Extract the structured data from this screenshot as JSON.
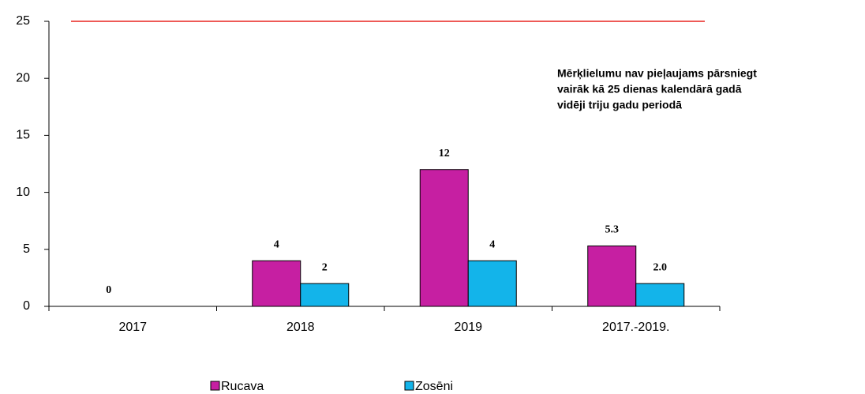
{
  "chart_data": {
    "type": "bar",
    "categories": [
      "2017",
      "2018",
      "2019",
      "2017.-2019."
    ],
    "series": [
      {
        "name": "Rucava",
        "color": "#c61fa2",
        "values": [
          0,
          4,
          12,
          5.3
        ]
      },
      {
        "name": "Zosēni",
        "color": "#13b4ea",
        "values": [
          null,
          2,
          4,
          2
        ],
        "value_labels": [
          null,
          "2",
          "4",
          "2.0"
        ]
      }
    ],
    "ylim": [
      0,
      25
    ],
    "yticks": [
      0,
      5,
      10,
      15,
      20,
      25
    ],
    "reference_line": {
      "value": 25,
      "color": "#e8231f"
    },
    "annotation": [
      "Mērķlielumu nav pieļaujams pārsniegt",
      "vairāk kā 25 dienas kalendārā gadā",
      "vidēji triju gadu periodā"
    ],
    "legend": "bottom"
  }
}
